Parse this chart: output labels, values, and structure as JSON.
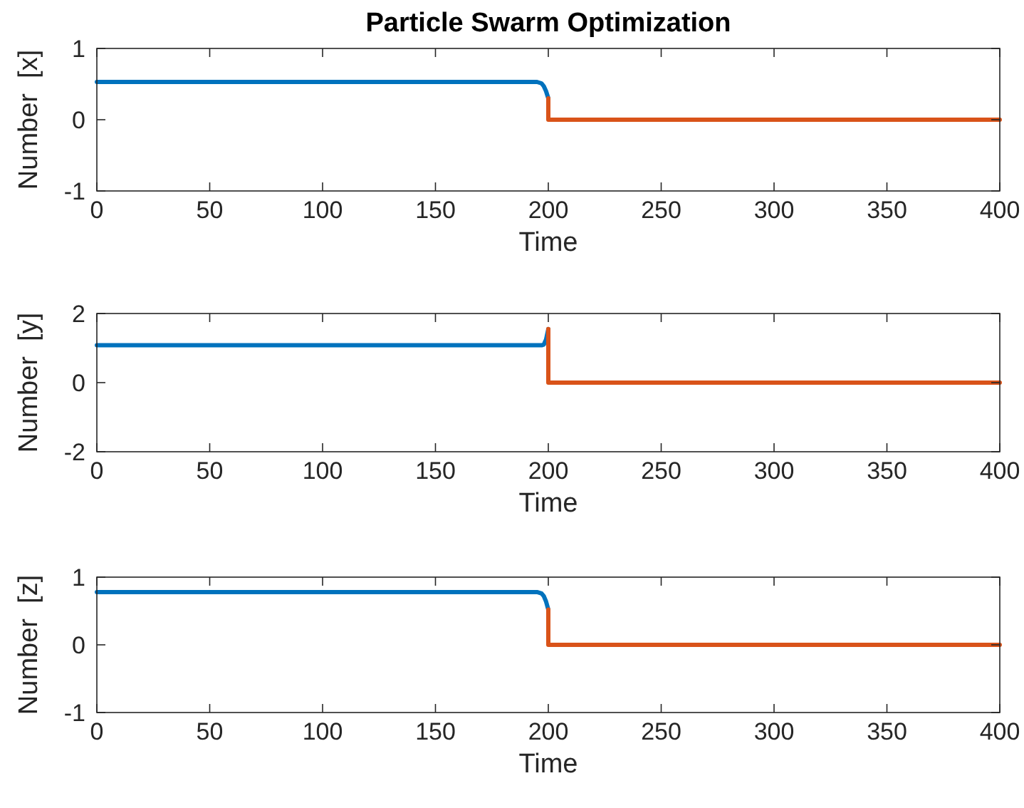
{
  "chart_data": [
    {
      "type": "line",
      "title": "Particle Swarm Optimization",
      "xlabel": "Time",
      "ylabel": "Number  [x]",
      "xlim": [
        0,
        400
      ],
      "xticks": [
        0,
        50,
        100,
        150,
        200,
        250,
        300,
        350,
        400
      ],
      "ylim": [
        -1,
        1
      ],
      "yticks": [
        -1,
        0,
        1
      ],
      "grid": false,
      "marker": "none",
      "line_style": "solid",
      "series": [
        {
          "color": "#0072bd",
          "x": [
            0,
            195,
            197,
            198,
            199,
            200
          ],
          "values": [
            0.53,
            0.53,
            0.51,
            0.47,
            0.4,
            0.3
          ]
        },
        {
          "color": "#d95319",
          "x": [
            200,
            200,
            201,
            250,
            300,
            350,
            400
          ],
          "values": [
            0.3,
            0,
            0,
            0,
            0,
            0,
            0
          ]
        }
      ]
    },
    {
      "type": "line",
      "xlabel": "Time",
      "ylabel": "Number  [y]",
      "xlim": [
        0,
        400
      ],
      "xticks": [
        0,
        50,
        100,
        150,
        200,
        250,
        300,
        350,
        400
      ],
      "ylim": [
        -2,
        2
      ],
      "yticks": [
        -2,
        0,
        2
      ],
      "grid": false,
      "marker": "none",
      "line_style": "solid",
      "series": [
        {
          "color": "#0072bd",
          "x": [
            0,
            197,
            198,
            199,
            200
          ],
          "values": [
            1.08,
            1.08,
            1.1,
            1.25,
            1.55
          ]
        },
        {
          "color": "#d95319",
          "x": [
            200,
            200,
            201,
            250,
            300,
            350,
            400
          ],
          "values": [
            1.55,
            0,
            0,
            0,
            0,
            0,
            0
          ]
        }
      ]
    },
    {
      "type": "line",
      "xlabel": "Time",
      "ylabel": "Number  [z]",
      "xlim": [
        0,
        400
      ],
      "xticks": [
        0,
        50,
        100,
        150,
        200,
        250,
        300,
        350,
        400
      ],
      "ylim": [
        -1,
        1
      ],
      "yticks": [
        -1,
        0,
        1
      ],
      "grid": false,
      "marker": "none",
      "line_style": "solid",
      "series": [
        {
          "color": "#0072bd",
          "x": [
            0,
            195,
            197,
            198,
            199,
            200
          ],
          "values": [
            0.78,
            0.78,
            0.76,
            0.72,
            0.64,
            0.52
          ]
        },
        {
          "color": "#d95319",
          "x": [
            200,
            200,
            201,
            250,
            300,
            350,
            400
          ],
          "values": [
            0.52,
            0,
            0,
            0,
            0,
            0,
            0
          ]
        }
      ]
    }
  ]
}
